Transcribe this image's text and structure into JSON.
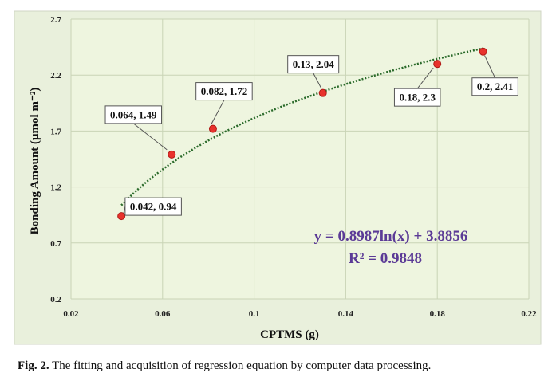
{
  "chart_data": {
    "type": "scatter",
    "xlabel": "CPTMS (g)",
    "ylabel": "Bonding Amount (μmol m⁻²)",
    "xlim": [
      0.02,
      0.22
    ],
    "ylim": [
      0.2,
      2.7
    ],
    "xticks": [
      "0.02",
      "0.06",
      "0.1",
      "0.14",
      "0.18",
      "0.22"
    ],
    "yticks": [
      "0.2",
      "0.7",
      "1.2",
      "1.7",
      "2.2",
      "2.7"
    ],
    "grid": true,
    "points": [
      {
        "x": 0.042,
        "y": 0.94,
        "label": "0.042, 0.94"
      },
      {
        "x": 0.064,
        "y": 1.49,
        "label": "0.064, 1.49"
      },
      {
        "x": 0.082,
        "y": 1.72,
        "label": "0.082, 1.72"
      },
      {
        "x": 0.13,
        "y": 2.04,
        "label": "0.13, 2.04"
      },
      {
        "x": 0.18,
        "y": 2.3,
        "label": "0.18, 2.3"
      },
      {
        "x": 0.2,
        "y": 2.41,
        "label": "0.2, 2.41"
      }
    ],
    "trendline": {
      "type": "logarithmic",
      "a": 0.8987,
      "b": 3.8856,
      "x_range": [
        0.042,
        0.2
      ],
      "equation": "y = 0.8987ln(x) + 3.8856",
      "r_squared": "R² = 0.9848"
    },
    "colors": {
      "plot_background": "#eef5df",
      "frame_background": "#ffffff",
      "grid": "#c9d4b6",
      "point": "#e8322c",
      "trendline": "#2a6a2a",
      "equation": "#5b3a96"
    }
  },
  "caption": {
    "label": "Fig. 2.",
    "text": " The fitting and acquisition of regression equation by computer data processing."
  }
}
